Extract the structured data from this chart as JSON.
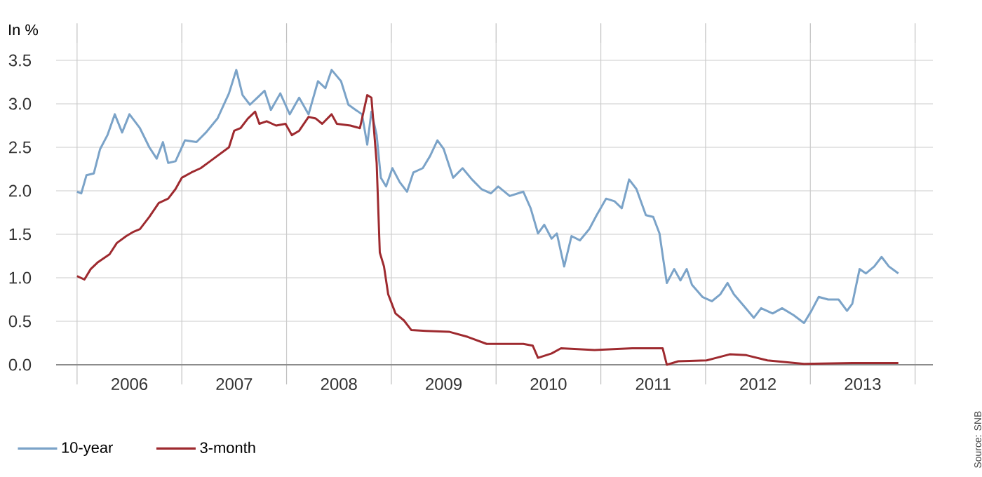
{
  "chart_data": {
    "type": "line",
    "ylabel": "In %",
    "annotations": [
      "Source: SNB"
    ],
    "xlim": [
      2005.8,
      2014.17
    ],
    "ylim": [
      0,
      3.7
    ],
    "xticks": [
      {
        "value": 2006,
        "label": null
      },
      {
        "value": 2006.5,
        "label": "2006"
      },
      {
        "value": 2007,
        "label": null
      },
      {
        "value": 2007.5,
        "label": "2007"
      },
      {
        "value": 2008,
        "label": null
      },
      {
        "value": 2008.5,
        "label": "2008"
      },
      {
        "value": 2009,
        "label": null
      },
      {
        "value": 2009.5,
        "label": "2009"
      },
      {
        "value": 2010,
        "label": null
      },
      {
        "value": 2010.5,
        "label": "2010"
      },
      {
        "value": 2011,
        "label": null
      },
      {
        "value": 2011.5,
        "label": "2011"
      },
      {
        "value": 2012,
        "label": null
      },
      {
        "value": 2012.5,
        "label": "2012"
      },
      {
        "value": 2013,
        "label": null
      },
      {
        "value": 2013.5,
        "label": "2013"
      },
      {
        "value": 2014,
        "label": null
      }
    ],
    "yticks": [
      {
        "value": 0,
        "label": "0.0"
      },
      {
        "value": 0.5,
        "label": "0.5"
      },
      {
        "value": 1,
        "label": "1.0"
      },
      {
        "value": 1.5,
        "label": "1.5"
      },
      {
        "value": 2,
        "label": "2.0"
      },
      {
        "value": 2.5,
        "label": "2.5"
      },
      {
        "value": 3,
        "label": "3.0"
      },
      {
        "value": 3.5,
        "label": "3.5"
      }
    ],
    "grid": true,
    "legend": "bottom left",
    "line_style": "solid",
    "marker": "none",
    "series": [
      {
        "name": "10-year",
        "color": "#7ba3c8",
        "x": [
          2006.0,
          2006.04,
          2006.09,
          2006.16,
          2006.22,
          2006.29,
          2006.36,
          2006.43,
          2006.5,
          2006.6,
          2006.69,
          2006.76,
          2006.82,
          2006.87,
          2006.94,
          2007.03,
          2007.14,
          2007.23,
          2007.34,
          2007.45,
          2007.52,
          2007.58,
          2007.65,
          2007.72,
          2007.79,
          2007.85,
          2007.94,
          2008.03,
          2008.12,
          2008.21,
          2008.3,
          2008.37,
          2008.43,
          2008.52,
          2008.59,
          2008.66,
          2008.72,
          2008.77,
          2008.81,
          2008.86,
          2008.9,
          2008.95,
          2009.01,
          2009.08,
          2009.15,
          2009.21,
          2009.3,
          2009.37,
          2009.44,
          2009.5,
          2009.59,
          2009.68,
          2009.77,
          2009.86,
          2009.95,
          2010.02,
          2010.13,
          2010.26,
          2010.33,
          2010.4,
          2010.46,
          2010.53,
          2010.58,
          2010.65,
          2010.72,
          2010.8,
          2010.89,
          2010.96,
          2011.05,
          2011.13,
          2011.2,
          2011.27,
          2011.34,
          2011.43,
          2011.5,
          2011.56,
          2011.6,
          2011.63,
          2011.7,
          2011.76,
          2011.82,
          2011.87,
          2011.97,
          2012.06,
          2012.14,
          2012.21,
          2012.27,
          2012.37,
          2012.46,
          2012.53,
          2012.64,
          2012.73,
          2012.84,
          2012.94,
          2013.01,
          2013.08,
          2013.17,
          2013.27,
          2013.35,
          2013.4,
          2013.47,
          2013.53,
          2013.61,
          2013.68,
          2013.75,
          2013.84
        ],
        "values": [
          1.99,
          1.97,
          2.18,
          2.2,
          2.48,
          2.64,
          2.88,
          2.67,
          2.88,
          2.72,
          2.5,
          2.37,
          2.56,
          2.32,
          2.34,
          2.58,
          2.56,
          2.67,
          2.83,
          3.12,
          3.39,
          3.1,
          2.99,
          3.07,
          3.15,
          2.93,
          3.12,
          2.88,
          3.07,
          2.88,
          3.26,
          3.18,
          3.39,
          3.26,
          2.99,
          2.93,
          2.88,
          2.53,
          2.91,
          2.64,
          2.15,
          2.05,
          2.26,
          2.1,
          1.99,
          2.21,
          2.26,
          2.4,
          2.58,
          2.48,
          2.15,
          2.26,
          2.13,
          2.02,
          1.97,
          2.05,
          1.94,
          1.99,
          1.8,
          1.51,
          1.61,
          1.45,
          1.51,
          1.13,
          1.48,
          1.43,
          1.56,
          1.72,
          1.91,
          1.88,
          1.8,
          2.13,
          2.02,
          1.72,
          1.7,
          1.51,
          1.18,
          0.94,
          1.1,
          0.97,
          1.1,
          0.92,
          0.78,
          0.73,
          0.81,
          0.94,
          0.81,
          0.67,
          0.54,
          0.65,
          0.59,
          0.65,
          0.57,
          0.48,
          0.62,
          0.78,
          0.75,
          0.75,
          0.62,
          0.7,
          1.1,
          1.05,
          1.13,
          1.24,
          1.13,
          1.05
        ]
      },
      {
        "name": "3-month",
        "color": "#9e2a2f",
        "x": [
          2006.0,
          2006.07,
          2006.13,
          2006.2,
          2006.31,
          2006.38,
          2006.47,
          2006.54,
          2006.6,
          2006.69,
          2006.78,
          2006.87,
          2006.94,
          2007.0,
          2007.09,
          2007.18,
          2007.27,
          2007.36,
          2007.45,
          2007.5,
          2007.56,
          2007.63,
          2007.7,
          2007.74,
          2007.81,
          2007.9,
          2007.99,
          2008.05,
          2008.12,
          2008.21,
          2008.28,
          2008.34,
          2008.43,
          2008.48,
          2008.61,
          2008.7,
          2008.77,
          2008.81,
          2008.86,
          2008.89,
          2008.93,
          2008.97,
          2009.04,
          2009.12,
          2009.19,
          2009.33,
          2009.55,
          2009.73,
          2009.91,
          2010.26,
          2010.35,
          2010.4,
          2010.53,
          2010.62,
          2010.94,
          2011.3,
          2011.59,
          2011.63,
          2011.74,
          2012.01,
          2012.23,
          2012.39,
          2012.59,
          2012.94,
          2013.4,
          2013.84
        ],
        "values": [
          1.02,
          0.98,
          1.1,
          1.18,
          1.27,
          1.4,
          1.48,
          1.53,
          1.56,
          1.7,
          1.86,
          1.91,
          2.02,
          2.15,
          2.21,
          2.26,
          2.34,
          2.42,
          2.5,
          2.69,
          2.72,
          2.83,
          2.91,
          2.77,
          2.8,
          2.75,
          2.77,
          2.64,
          2.69,
          2.85,
          2.83,
          2.77,
          2.88,
          2.77,
          2.75,
          2.72,
          3.1,
          3.07,
          2.32,
          1.29,
          1.13,
          0.81,
          0.59,
          0.51,
          0.4,
          0.39,
          0.38,
          0.32,
          0.24,
          0.24,
          0.22,
          0.08,
          0.13,
          0.19,
          0.17,
          0.19,
          0.19,
          0.0,
          0.04,
          0.05,
          0.12,
          0.11,
          0.05,
          0.01,
          0.02,
          0.02
        ]
      }
    ]
  }
}
